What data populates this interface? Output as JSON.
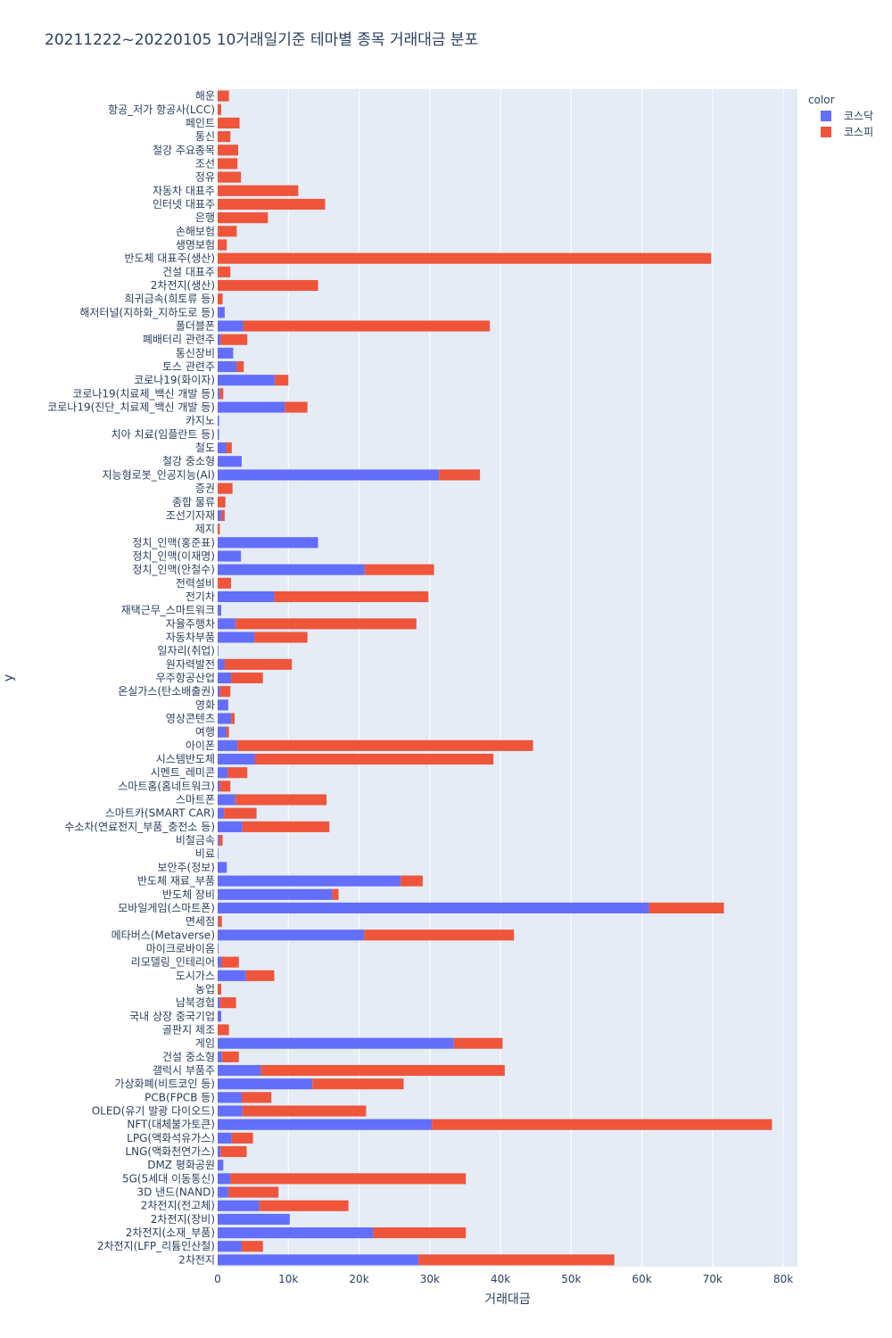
{
  "chart_data": {
    "type": "bar",
    "orientation": "horizontal",
    "barmode": "stack",
    "title": "20211222~20220105 10거래일기준 테마별 종목 거래대금 분포",
    "xlabel": "거래대금",
    "ylabel": "y",
    "xlim": [
      0,
      82000
    ],
    "x_ticks": [
      0,
      10000,
      20000,
      30000,
      40000,
      50000,
      60000,
      70000,
      80000
    ],
    "x_tick_labels": [
      "0",
      "10k",
      "20k",
      "30k",
      "40k",
      "50k",
      "60k",
      "70k",
      "80k"
    ],
    "grid": true,
    "legend": {
      "title": "color",
      "position": "top-right"
    },
    "series": [
      {
        "name": "코스닥",
        "color": "#636efa"
      },
      {
        "name": "코스피",
        "color": "#ef553b"
      }
    ],
    "categories": [
      "해운",
      "항공_저가 항공사(LCC)",
      "페인트",
      "통신",
      "철강 주요종목",
      "조선",
      "정유",
      "자동차 대표주",
      "인터넷 대표주",
      "은행",
      "손해보험",
      "생명보험",
      "반도체 대표주(생산)",
      "건설 대표주",
      "2차전지(생산)",
      "희귀금속(희토류 등)",
      "해저터널(지하화_지하도로 등)",
      "폴더블폰",
      "폐배터리 관련주",
      "통신장비",
      "토스 관련주",
      "코로나19(화이자)",
      "코로나19(치료제_백신 개발 등)",
      "코로나19(진단_치료제_백신 개발 등)",
      "카지노",
      "치아 치료(임플란트 등)",
      "철도",
      "철강 중소형",
      "지능형로봇_인공지능(AI)",
      "증권",
      "종합 물류",
      "조선기자재",
      "제지",
      "정치_인맥(홍준표)",
      "정치_인맥(이재명)",
      "정치_인맥(안철수)",
      "전력설비",
      "전기차",
      "재택근무_스마트워크",
      "자율주행차",
      "자동차부품",
      "일자리(취업)",
      "원자력발전",
      "우주항공산업",
      "온실가스(탄소배출권)",
      "영화",
      "영상콘텐츠",
      "여행",
      "아이폰",
      "시스템반도체",
      "시멘트_레미콘",
      "스마트홈(홈네트워크)",
      "스마트폰",
      "스마트카(SMART CAR)",
      "수소차(연료전지_부품_충전소 등)",
      "비철금속",
      "비료",
      "보안주(정보)",
      "반도체 재료_부품",
      "반도체 장비",
      "모바일게임(스마트폰)",
      "면세점",
      "메타버스(Metaverse)",
      "마이크로바이옴",
      "리모델링_인테리어",
      "도시가스",
      "농업",
      "남북경협",
      "국내 상장 중국기업",
      "골판지 제조",
      "게임",
      "건설 중소형",
      "갤럭시 부품주",
      "가상화폐(비트코인 등)",
      "PCB(FPCB 등)",
      "OLED(유기 발광 다이오드)",
      "NFT(대체불가토큰)",
      "LPG(액화석유가스)",
      "LNG(액화천연가스)",
      "DMZ 평화공원",
      "5G(5세대 이동통신)",
      "3D 낸드(NAND)",
      "2차전지(전고체)",
      "2차전지(장비)",
      "2차전지(소재_부품)",
      "2차전지(LFP_리튬인산철)",
      "2차전지"
    ],
    "values_kosdaq": [
      0,
      0,
      0,
      0,
      0,
      0,
      0,
      0,
      0,
      0,
      0,
      0,
      0,
      0,
      0,
      0,
      1000,
      3600,
      400,
      2200,
      2700,
      8100,
      300,
      9500,
      200,
      200,
      1200,
      3400,
      31300,
      0,
      0,
      500,
      0,
      14200,
      3300,
      20800,
      0,
      8000,
      500,
      2500,
      5200,
      100,
      1000,
      1900,
      300,
      1500,
      1900,
      1200,
      2800,
      5300,
      1400,
      300,
      2500,
      900,
      3500,
      200,
      100,
      1300,
      25900,
      16200,
      61000,
      100,
      20700,
      100,
      500,
      4000,
      0,
      300,
      500,
      0,
      33400,
      600,
      6100,
      13400,
      3400,
      3500,
      30300,
      2000,
      400,
      800,
      1800,
      1500,
      5900,
      10200,
      22000,
      3400,
      28400
    ],
    "values_kospi": [
      1600,
      500,
      3100,
      1800,
      2900,
      2800,
      3300,
      11400,
      15200,
      7100,
      2700,
      1300,
      69800,
      1800,
      14200,
      700,
      0,
      34900,
      3800,
      0,
      1000,
      1900,
      500,
      3200,
      0,
      0,
      800,
      0,
      5800,
      2100,
      1100,
      500,
      300,
      0,
      0,
      9800,
      1900,
      21800,
      0,
      25600,
      7500,
      0,
      9500,
      4500,
      1500,
      0,
      500,
      400,
      41800,
      33700,
      2800,
      1500,
      12900,
      4600,
      12300,
      500,
      0,
      0,
      3100,
      900,
      10600,
      500,
      21200,
      0,
      2500,
      4000,
      500,
      2300,
      0,
      1600,
      6900,
      2400,
      34500,
      12900,
      4200,
      17500,
      48100,
      3000,
      3700,
      0,
      33300,
      7100,
      12600,
      0,
      13100,
      3000,
      27700
    ]
  }
}
